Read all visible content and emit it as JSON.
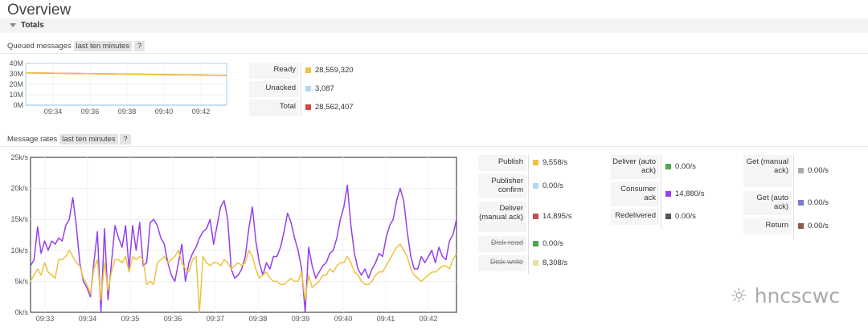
{
  "page": {
    "title": "Overview",
    "section": "Totals"
  },
  "queued": {
    "label": "Queued messages",
    "range": "last ten minutes",
    "help": "?",
    "y_ticks": [
      "40M",
      "30M",
      "20M",
      "10M",
      "0M"
    ],
    "x_ticks": [
      "09:34",
      "09:36",
      "09:38",
      "09:40",
      "09:42"
    ],
    "stats": [
      {
        "label": "Ready",
        "value": "28,559,320",
        "color": "#edc240"
      },
      {
        "label": "Unacked",
        "value": "3,087",
        "color": "#afd8f8"
      },
      {
        "label": "Total",
        "value": "28,562,407",
        "color": "#cb4b4b"
      }
    ]
  },
  "rates": {
    "label": "Message rates",
    "range": "last ten minutes",
    "help": "?",
    "y_ticks": [
      "25k/s",
      "20k/s",
      "15k/s",
      "10k/s",
      "5k/s",
      "0k/s"
    ],
    "x_ticks": [
      "09:33",
      "09:34",
      "09:35",
      "09:36",
      "09:37",
      "09:38",
      "09:39",
      "09:40",
      "09:41",
      "09:42"
    ],
    "col1": [
      {
        "label": "Publish",
        "value": "9,558/s",
        "color": "#edc240"
      },
      {
        "label": "Publisher confirm",
        "value": "0.00/s",
        "color": "#afd8f8"
      },
      {
        "label": "Deliver (manual ack)",
        "value": "14,895/s",
        "color": "#cb4b4b"
      },
      {
        "label": "Disk read",
        "value": "0.00/s",
        "color": "#4da74d",
        "strike": true
      },
      {
        "label": "Disk write",
        "value": "8,308/s",
        "color": "#e8e0a0",
        "strike": true
      }
    ],
    "col2": [
      {
        "label": "Deliver (auto ack)",
        "value": "0.00/s",
        "color": "#4da74d"
      },
      {
        "label": "Consumer ack",
        "value": "14,880/s",
        "color": "#9440ed"
      },
      {
        "label": "Redelivered",
        "value": "0.00/s",
        "color": "#555555"
      }
    ],
    "col3": [
      {
        "label": "Get (manual ack)",
        "value": "0.00/s",
        "color": "#aaaaaa"
      },
      {
        "label": "Get (auto ack)",
        "value": "0.00/s",
        "color": "#7a7acc"
      },
      {
        "label": "Return",
        "value": "0.00/s",
        "color": "#8d5b4b"
      }
    ]
  },
  "chart_data": [
    {
      "type": "line",
      "title": "Queued messages",
      "ylim": [
        0,
        40000000
      ],
      "x_ticks": [
        "09:34",
        "09:36",
        "09:38",
        "09:40",
        "09:42"
      ],
      "series": [
        {
          "name": "Total",
          "color": "#cb4b4b",
          "values": [
            31000000,
            30500000,
            30000000,
            29500000,
            29000000,
            28562407
          ]
        },
        {
          "name": "Ready",
          "color": "#edc240",
          "values": [
            30990000,
            30490000,
            29990000,
            29490000,
            28990000,
            28559320
          ]
        },
        {
          "name": "Unacked",
          "color": "#afd8f8",
          "values": [
            3000,
            3000,
            3000,
            3000,
            3000,
            3087
          ]
        }
      ]
    },
    {
      "type": "line",
      "title": "Message rates",
      "ylim": [
        0,
        25000
      ],
      "x_ticks": [
        "09:33",
        "09:34",
        "09:35",
        "09:36",
        "09:37",
        "09:38",
        "09:39",
        "09:40",
        "09:41",
        "09:42"
      ],
      "series": [
        {
          "name": "Consumer ack",
          "color": "#9440ed",
          "values": [
            7500,
            8500,
            13800,
            9500,
            11500,
            10000,
            11500,
            11000,
            12000,
            11500,
            14000,
            15000,
            18500,
            14000,
            8000,
            5000,
            4000,
            2500,
            8000,
            13000,
            0,
            13500,
            2000,
            8000,
            14000,
            12000,
            10500,
            14000,
            7000,
            14000,
            10000,
            14500,
            7500,
            8000,
            14500,
            15000,
            14000,
            12000,
            11000,
            8000,
            6000,
            5000,
            8000,
            11000,
            5000,
            8000,
            9500,
            10500,
            12000,
            13000,
            13500,
            15000,
            11000,
            14000,
            17000,
            18000,
            15000,
            7000,
            5500,
            6000,
            7000,
            9000,
            13500,
            17000,
            11500,
            8000,
            6000,
            8000,
            7000,
            9000,
            9000,
            10500,
            13000,
            16000,
            14500,
            12000,
            10000,
            7000,
            0,
            10500,
            7500,
            5500,
            6500,
            7500,
            8000,
            9500,
            10000,
            12000,
            15000,
            17000,
            20500,
            14000,
            9500,
            7000,
            6000,
            7000,
            5500,
            7000,
            8000,
            9500,
            9000,
            12000,
            14000,
            15000,
            18000,
            20000,
            18000,
            13000,
            9000,
            7000,
            7000,
            9000,
            8000,
            9000,
            10000,
            8000,
            10500,
            9000,
            8500,
            11500,
            12500,
            15000
          ]
        },
        {
          "name": "Publish",
          "color": "#edc240",
          "values": [
            5000,
            6000,
            7000,
            6000,
            8000,
            6500,
            6000,
            5500,
            8500,
            8500,
            9000,
            10000,
            9000,
            8000,
            7500,
            5500,
            4500,
            3000,
            7000,
            8500,
            2000,
            8000,
            3500,
            6500,
            8500,
            8500,
            8000,
            9000,
            6500,
            9000,
            8500,
            9000,
            8500,
            4500,
            5000,
            4500,
            8000,
            8500,
            9000,
            8000,
            8500,
            9000,
            10000,
            8000,
            7000,
            6500,
            8500,
            9000,
            0,
            9000,
            8000,
            7500,
            8000,
            8000,
            7500,
            8500,
            8000,
            7000,
            7500,
            8000,
            7500,
            8000,
            10000,
            9000,
            7000,
            5500,
            6000,
            6500,
            5500,
            5000,
            5000,
            4500,
            4500,
            5000,
            5500,
            5000,
            5000,
            6500,
            2000,
            6000,
            4000,
            4500,
            5000,
            6000,
            6000,
            7000,
            6500,
            7500,
            8000,
            8000,
            9000,
            8000,
            6500,
            6000,
            5000,
            4500,
            4500,
            5000,
            6000,
            6500,
            6500,
            7500,
            8500,
            9500,
            10500,
            11000,
            10000,
            9000,
            7000,
            6000,
            5500,
            5000,
            5500,
            6000,
            6500,
            6500,
            7000,
            7500,
            7500,
            7000,
            8500,
            9500
          ]
        }
      ]
    }
  ]
}
